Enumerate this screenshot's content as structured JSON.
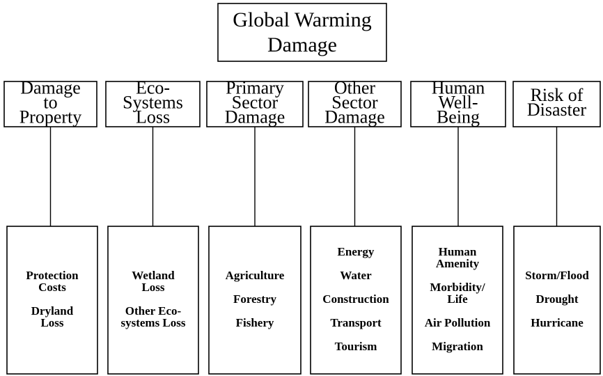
{
  "title": [
    "Global Warming",
    "Damage"
  ],
  "categories": [
    {
      "label": [
        "Damage",
        "to",
        "Property"
      ],
      "items": [
        [
          "Protection",
          "Costs"
        ],
        [
          "Dryland",
          "Loss"
        ]
      ]
    },
    {
      "label": [
        "Eco-",
        "Systems",
        "Loss"
      ],
      "items": [
        [
          "Wetland",
          "Loss"
        ],
        [
          "Other Eco-",
          "systems Loss"
        ]
      ]
    },
    {
      "label": [
        "Primary",
        "Sector",
        "Damage"
      ],
      "items": [
        [
          "Agriculture"
        ],
        [
          "Forestry"
        ],
        [
          "Fishery"
        ]
      ]
    },
    {
      "label": [
        "Other",
        "Sector",
        "Damage"
      ],
      "items": [
        [
          "Energy"
        ],
        [
          "Water"
        ],
        [
          "Construction"
        ],
        [
          "Transport"
        ],
        [
          "Tourism"
        ]
      ]
    },
    {
      "label": [
        "Human",
        "Well-",
        "Being"
      ],
      "items": [
        [
          "Human",
          "Amenity"
        ],
        [
          "Morbidity/",
          "Life"
        ],
        [
          "Air Pollution"
        ],
        [
          "Migration"
        ]
      ]
    },
    {
      "label": [
        "Risk of",
        "Disaster"
      ],
      "items": [
        [
          "Storm/Flood"
        ],
        [
          "Drought"
        ],
        [
          "Hurricane"
        ]
      ]
    }
  ]
}
